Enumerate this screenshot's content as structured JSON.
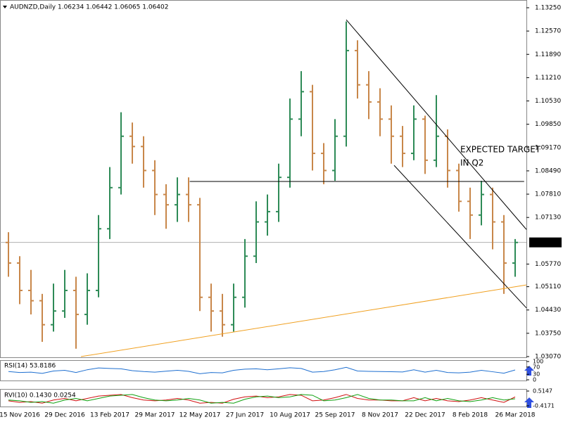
{
  "chart_data": [
    {
      "type": "ohlc",
      "title": "AUDNZD,Daily  1.06234 1.06442 1.06065 1.06402",
      "categories": [
        null,
        "15 Nov 2016",
        null,
        null,
        null,
        "29 Dec 2016",
        null,
        null,
        null,
        "13 Feb 2017",
        null,
        null,
        null,
        "29 Mar 2017",
        null,
        null,
        null,
        "12 May 2017",
        null,
        null,
        null,
        "27 Jun 2017",
        null,
        null,
        null,
        "10 Aug 2017",
        null,
        null,
        null,
        "25 Sep 2017",
        null,
        null,
        null,
        "8 Nov 2017",
        null,
        null,
        null,
        "22 Dec 2017",
        null,
        null,
        null,
        "8 Feb 2018",
        null,
        null,
        null,
        "26 Mar 2018"
      ],
      "open": [
        1.064,
        1.058,
        1.05,
        1.047,
        1.04,
        1.044,
        1.05,
        1.043,
        1.05,
        1.068,
        1.08,
        1.095,
        1.092,
        1.085,
        1.078,
        1.075,
        1.078,
        1.075,
        1.048,
        1.044,
        1.04,
        1.048,
        1.06,
        1.07,
        1.073,
        1.083,
        1.1,
        1.108,
        1.09,
        1.085,
        1.095,
        1.12,
        1.11,
        1.105,
        1.1,
        1.095,
        1.09,
        1.1,
        1.088,
        1.095,
        1.085,
        1.076,
        1.072,
        1.078,
        1.07,
        1.058
      ],
      "high": [
        1.067,
        1.06,
        1.056,
        1.049,
        1.052,
        1.056,
        1.054,
        1.055,
        1.072,
        1.086,
        1.102,
        1.099,
        1.095,
        1.088,
        1.081,
        1.083,
        1.083,
        1.077,
        1.052,
        1.049,
        1.052,
        1.065,
        1.076,
        1.078,
        1.087,
        1.106,
        1.114,
        1.11,
        1.093,
        1.1,
        1.1285,
        1.123,
        1.114,
        1.109,
        1.104,
        1.098,
        1.104,
        1.101,
        1.107,
        1.097,
        1.087,
        1.08,
        1.082,
        1.08,
        1.072,
        1.065
      ],
      "low": [
        1.054,
        1.046,
        1.043,
        1.035,
        1.038,
        1.042,
        1.033,
        1.04,
        1.048,
        1.065,
        1.078,
        1.087,
        1.08,
        1.072,
        1.068,
        1.07,
        1.07,
        1.044,
        1.038,
        1.0365,
        1.038,
        1.045,
        1.058,
        1.066,
        1.07,
        1.08,
        1.095,
        1.085,
        1.081,
        1.082,
        1.092,
        1.106,
        1.1,
        1.095,
        1.087,
        1.086,
        1.088,
        1.084,
        1.086,
        1.08,
        1.073,
        1.065,
        1.069,
        1.062,
        1.049,
        1.054
      ],
      "close": [
        1.058,
        1.05,
        1.047,
        1.04,
        1.044,
        1.05,
        1.043,
        1.05,
        1.068,
        1.08,
        1.095,
        1.092,
        1.085,
        1.078,
        1.075,
        1.078,
        1.075,
        1.048,
        1.044,
        1.04,
        1.048,
        1.06,
        1.07,
        1.073,
        1.083,
        1.1,
        1.108,
        1.09,
        1.085,
        1.095,
        1.12,
        1.11,
        1.105,
        1.1,
        1.095,
        1.09,
        1.1,
        1.088,
        1.095,
        1.085,
        1.076,
        1.072,
        1.078,
        1.07,
        1.058,
        1.064
      ],
      "up_color": "#2e8b57",
      "down_color": "#c8874a",
      "ylim": [
        1.0307,
        1.1325
      ],
      "yticks": [
        {
          "value": 1.1325,
          "label": "1.13250"
        },
        {
          "value": 1.1257,
          "label": "1.12570"
        },
        {
          "value": 1.1189,
          "label": "1.11890"
        },
        {
          "value": 1.1121,
          "label": "1.11210"
        },
        {
          "value": 1.1053,
          "label": "1.10530"
        },
        {
          "value": 1.0985,
          "label": "1.09850"
        },
        {
          "value": 1.0917,
          "label": "1.09170"
        },
        {
          "value": 1.0849,
          "label": "1.08490"
        },
        {
          "value": 1.0781,
          "label": "1.07810"
        },
        {
          "value": 1.0713,
          "label": "1.07130"
        },
        {
          "value": 1.0577,
          "label": "1.05770"
        },
        {
          "value": 1.0511,
          "label": "1.05110"
        },
        {
          "value": 1.0443,
          "label": "1.04430"
        },
        {
          "value": 1.0375,
          "label": "1.03750"
        },
        {
          "value": 1.0307,
          "label": "1.03070"
        }
      ],
      "last_price": 1.06402,
      "trendlines": [
        {
          "from": [
            16.1,
            1.0818
          ],
          "to": [
            45.8,
            1.0818
          ],
          "color": "#000000"
        },
        {
          "from": [
            30,
            1.129
          ],
          "to": [
            46,
            1.0678
          ],
          "color": "#000000"
        },
        {
          "from": [
            34.25,
            1.0865
          ],
          "to": [
            46,
            1.0449
          ],
          "color": "#000000"
        },
        {
          "from": [
            6.44,
            1.0307
          ],
          "to": [
            46,
            1.0516
          ],
          "color": "#f0a020"
        }
      ],
      "annotation": [
        "EXPECTED TARGET",
        "IN Q2"
      ],
      "annotation_color": "#3c3cc8"
    },
    {
      "type": "line",
      "title": "RSI(14) 53.8186",
      "series": [
        {
          "color": "#1e6fd0",
          "values": [
            45,
            40,
            42,
            35,
            48,
            52,
            40,
            55,
            65,
            62,
            60,
            50,
            45,
            42,
            47,
            52,
            46,
            33,
            40,
            38,
            52,
            58,
            60,
            55,
            60,
            66,
            62,
            42,
            45,
            55,
            68,
            48,
            46,
            45,
            44,
            43,
            55,
            42,
            52,
            40,
            38,
            42,
            52,
            44,
            36,
            53.8186
          ]
        }
      ],
      "ylim": [
        0,
        100
      ],
      "yticks": [
        0,
        30,
        70,
        100
      ]
    },
    {
      "type": "line",
      "title": "RVI(10) 0.1430 0.0254",
      "series": [
        {
          "color": "#d01010",
          "values": [
            -0.1,
            -0.2,
            -0.15,
            -0.25,
            -0.05,
            0.05,
            -0.1,
            0.05,
            0.2,
            0.25,
            0.3,
            0.1,
            -0.05,
            -0.1,
            -0.05,
            0.05,
            -0.05,
            -0.25,
            -0.2,
            -0.25,
            0.0,
            0.15,
            0.2,
            0.1,
            0.15,
            0.3,
            0.25,
            -0.1,
            -0.05,
            0.1,
            0.3,
            0.05,
            -0.05,
            -0.05,
            -0.1,
            -0.1,
            0.1,
            -0.1,
            0.05,
            -0.1,
            -0.15,
            -0.05,
            0.1,
            -0.05,
            -0.2,
            0.143
          ]
        },
        {
          "color": "#10a010",
          "values": [
            -0.05,
            -0.1,
            -0.2,
            -0.15,
            -0.25,
            -0.05,
            0.05,
            -0.1,
            0.05,
            0.2,
            0.25,
            0.3,
            0.1,
            -0.05,
            -0.1,
            -0.05,
            0.05,
            -0.05,
            -0.25,
            -0.2,
            -0.25,
            0.0,
            0.15,
            0.2,
            0.1,
            0.15,
            0.3,
            0.25,
            -0.1,
            -0.05,
            0.1,
            0.3,
            0.05,
            -0.05,
            -0.05,
            -0.1,
            -0.1,
            0.1,
            -0.1,
            0.05,
            -0.1,
            -0.15,
            -0.05,
            0.1,
            -0.05,
            0.0254
          ]
        }
      ],
      "ylim": [
        -0.4171,
        0.5147
      ],
      "yticks": [
        0.5147,
        -0.4171
      ]
    }
  ]
}
